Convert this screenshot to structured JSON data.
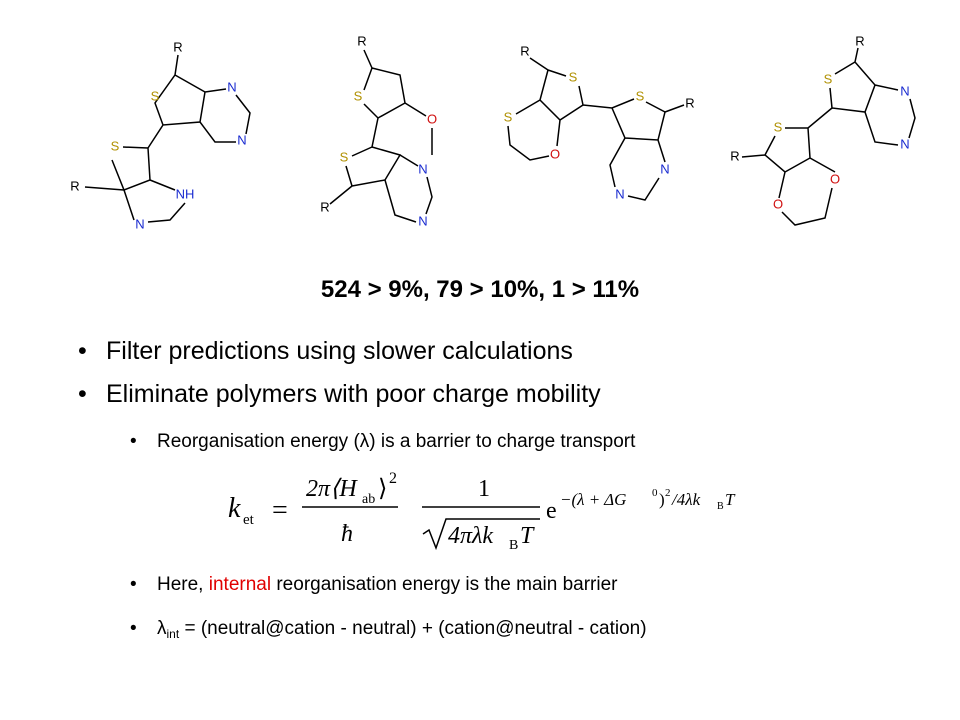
{
  "molecules": [
    {
      "labels": [
        "R",
        "S",
        "N",
        "N",
        "S",
        "R",
        "NH",
        "N"
      ]
    },
    {
      "labels": [
        "R",
        "S",
        "O",
        "S",
        "N",
        "R",
        "N"
      ]
    },
    {
      "labels": [
        "R",
        "S",
        "S",
        "R",
        "S",
        "O",
        "N",
        "N"
      ]
    },
    {
      "labels": [
        "R",
        "S",
        "N",
        "S",
        "N",
        "R",
        "O",
        "O"
      ]
    }
  ],
  "heading": "524 > 9%, 79 > 10%, 1 > 11%",
  "bullets": [
    "Filter predictions using slower calculations",
    "Eliminate polymers with poor charge mobility"
  ],
  "sub_bullets": {
    "first": "Reorganisation energy (λ) is a barrier to charge transport",
    "second": {
      "before": "Here, ",
      "highlight": "internal",
      "after": " reorganisation energy is the main barrier"
    },
    "third": {
      "symbol": "λ",
      "subscript": "int",
      "rest": " = (neutral@cation - neutral) + (cation@neutral - cation)"
    }
  },
  "equation": {
    "k": "k",
    "k_sub": "et",
    "equals": "=",
    "num1": "2π⟨H",
    "num1_sub": "ab",
    "num1_close": "⟩",
    "num1_sup": "2",
    "den1": "ħ",
    "num2": "1",
    "den2": "4πλk",
    "den2_sub": "B",
    "den2_T": "T",
    "exp_base": "e",
    "exp": "−(λ + ΔG",
    "exp_sup": "0",
    "exp_mid": ")",
    "exp_sup2": "2",
    "exp_tail": "/4λk",
    "exp_sub": "B",
    "exp_T": "T"
  }
}
